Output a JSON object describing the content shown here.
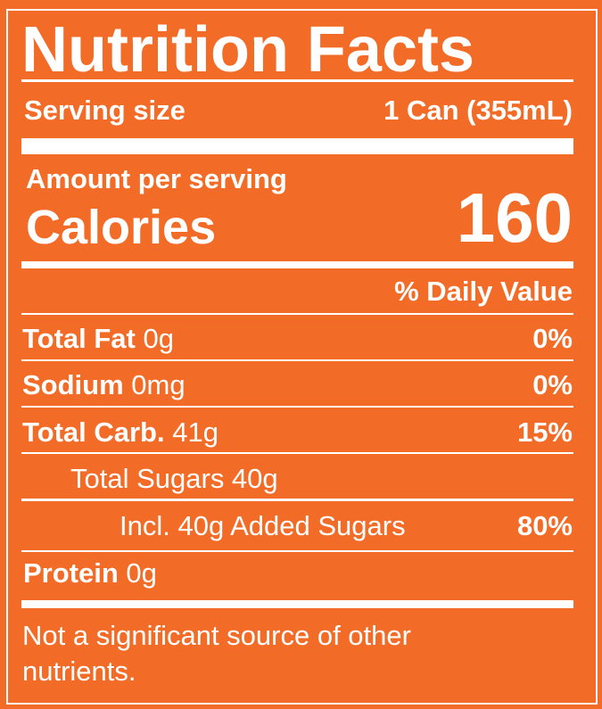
{
  "label": {
    "title": "Nutrition Facts",
    "serving_size_label": "Serving size",
    "serving_size_value": "1 Can (355mL)",
    "amount_per_serving": "Amount per serving",
    "calories_label": "Calories",
    "calories_value": "160",
    "daily_value_header": "% Daily Value",
    "nutrients": [
      {
        "name": "Total Fat",
        "amount": "0g",
        "dv": "0%"
      },
      {
        "name": "Sodium",
        "amount": "0mg",
        "dv": "0%"
      },
      {
        "name": "Total Carb.",
        "amount": "41g",
        "dv": "15%"
      },
      {
        "name": "Total Sugars 40g",
        "amount": "",
        "dv": ""
      },
      {
        "name": "Incl. 40g Added Sugars",
        "amount": "",
        "dv": "80%"
      },
      {
        "name": "Protein",
        "amount": "0g",
        "dv": ""
      }
    ],
    "footnote_line1": "Not a significant source of other",
    "footnote_line2": "nutrients."
  },
  "colors": {
    "background": "#F26C27",
    "text": "#FFFFFF"
  }
}
